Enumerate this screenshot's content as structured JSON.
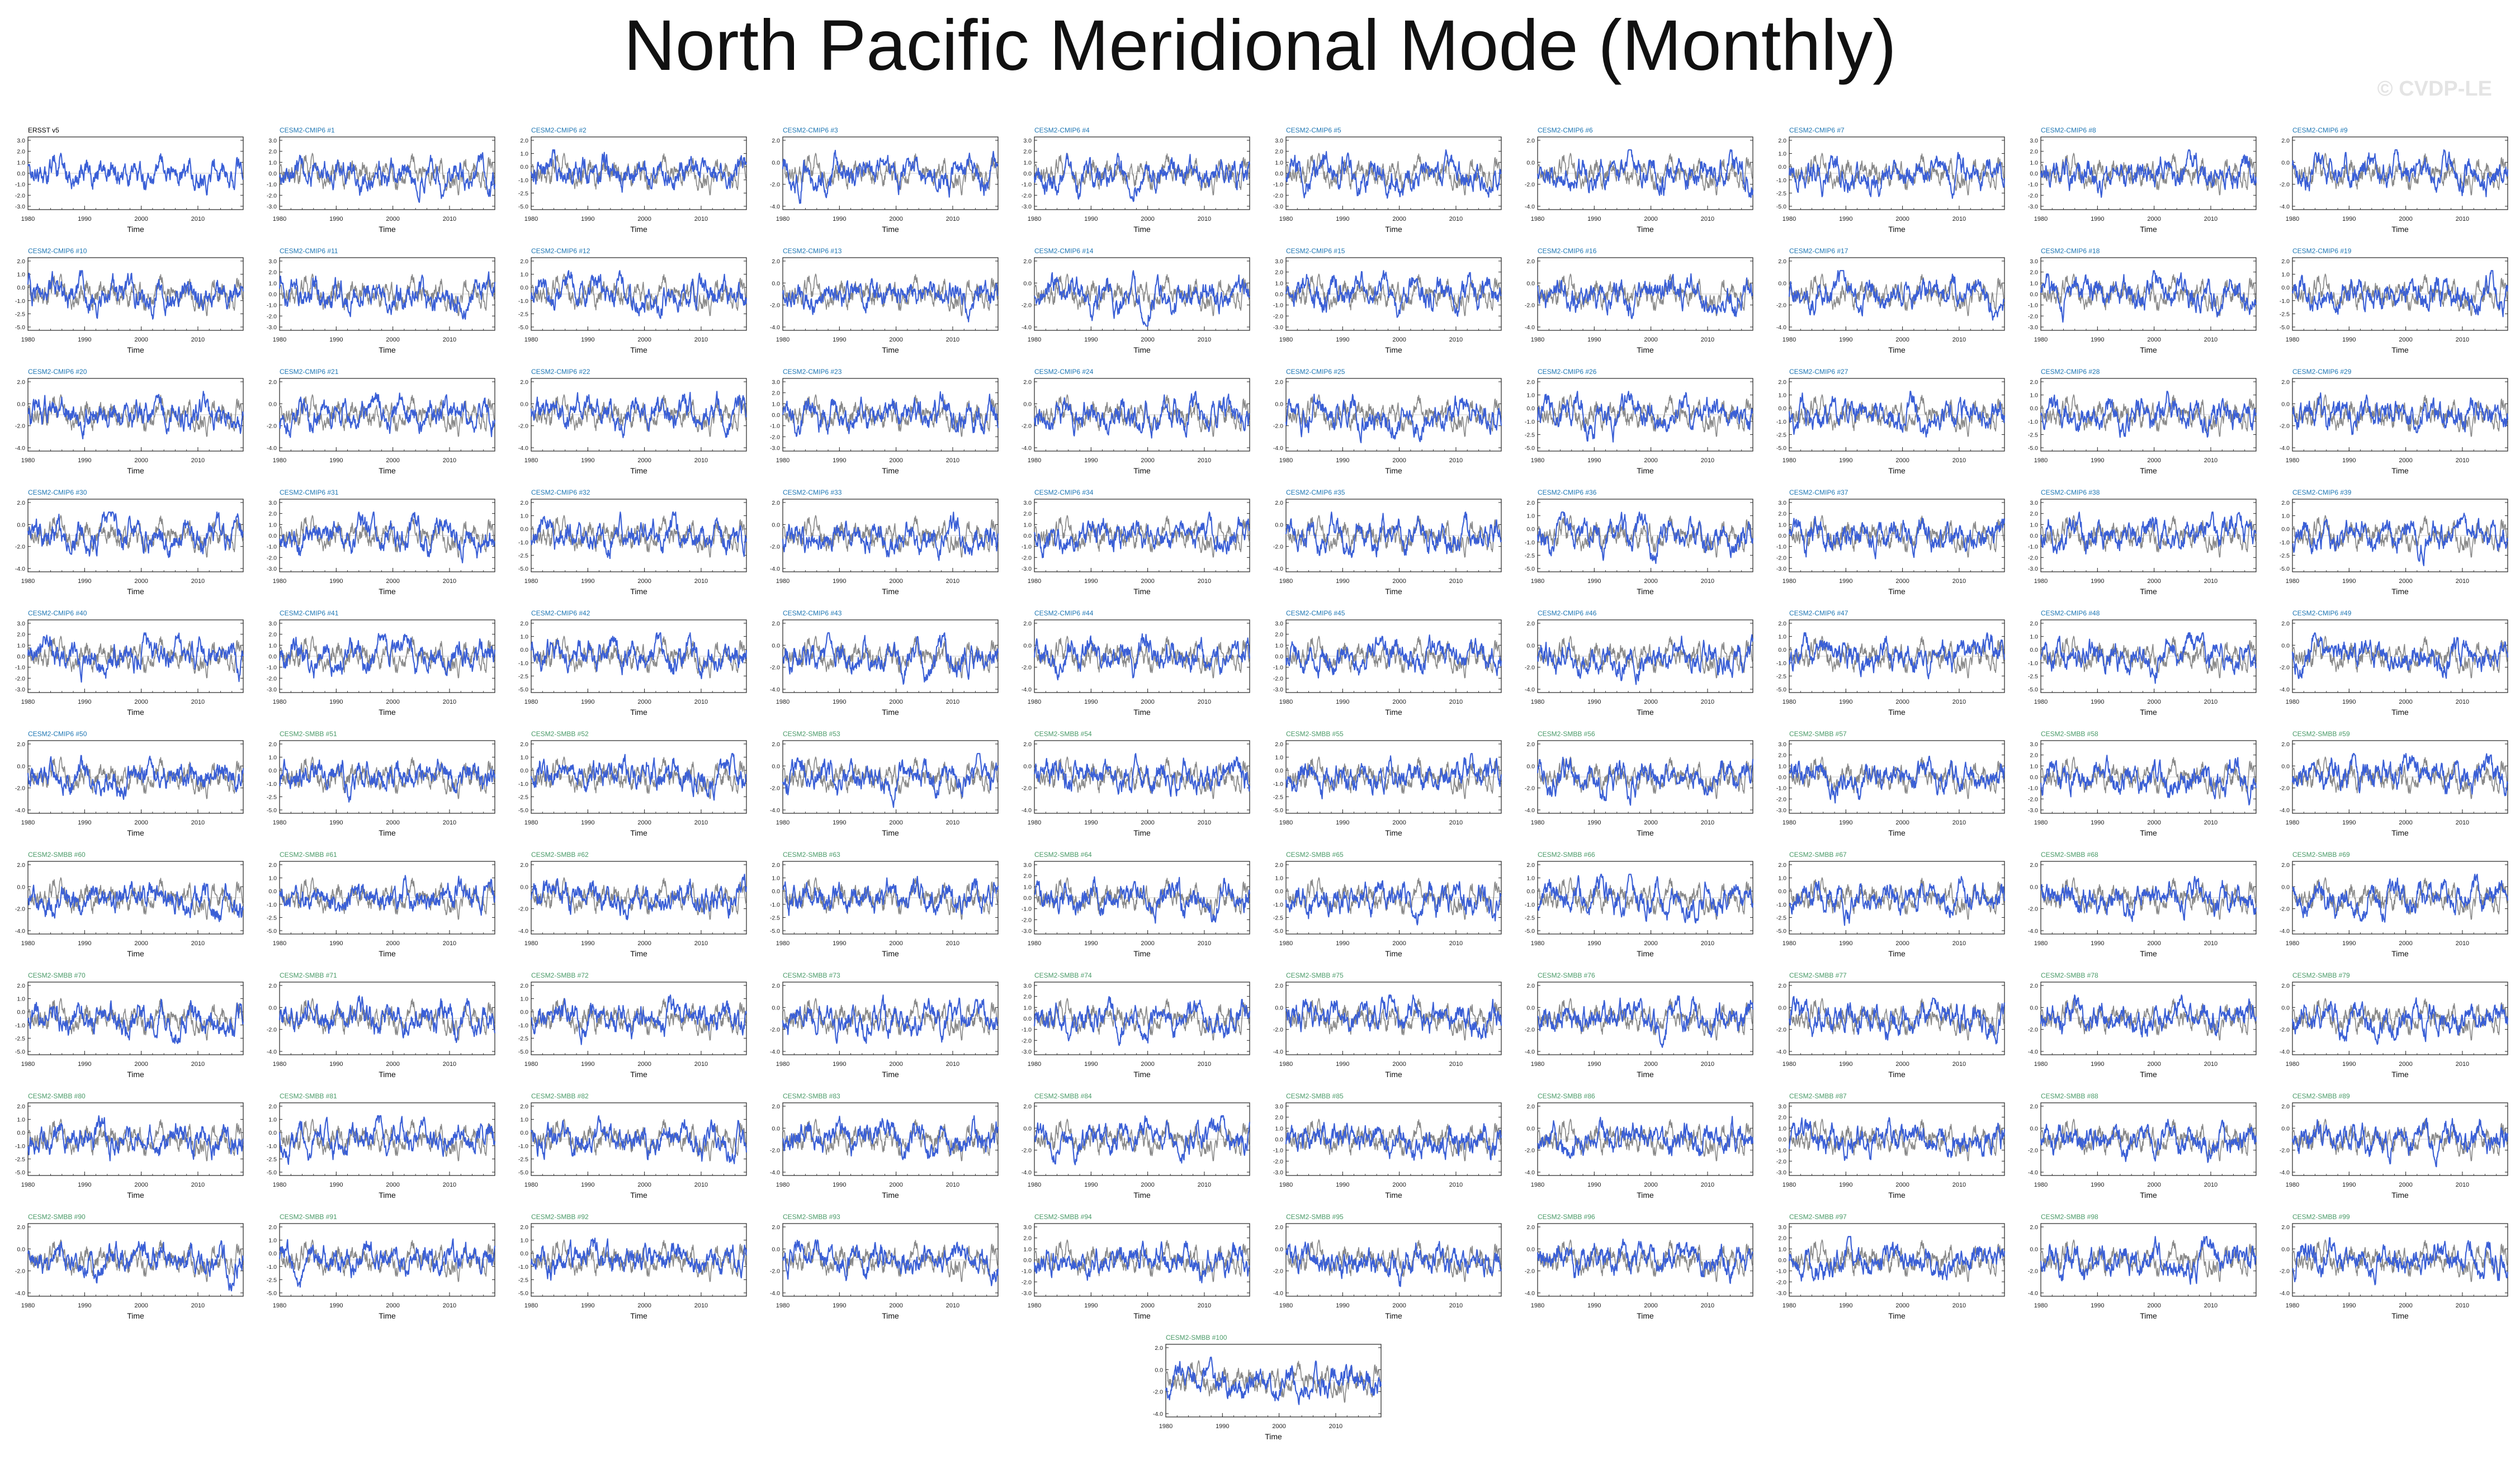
{
  "page": {
    "title": "North Pacific Meridional Mode (Monthly)",
    "watermark": "© CVDP-LE"
  },
  "colors": {
    "observed_series": "#3a5fd6",
    "reference_series": "#888888",
    "obs_label": "#000000",
    "cmip6_label": "#1f77b4",
    "smbb_label": "#4a9a68",
    "axis": "#222222"
  },
  "chart_data": {
    "type": "line",
    "layout": "small-multiples",
    "panel_count": 101,
    "xlabel": "Time",
    "x_ticks": [
      1980,
      1990,
      2000,
      2010
    ],
    "xlim": [
      1980,
      2018
    ],
    "ylim": [
      -4.0,
      3.0
    ],
    "y_ticks_full": [
      "3.0",
      "2.0",
      "1.0",
      "0.0",
      "-1.0",
      "-2.0",
      "-3.0"
    ],
    "y_ticks_sparse": [
      "2.0",
      "0.0",
      "-2.0",
      "-4.0"
    ],
    "y_ticks_half": [
      "2.0",
      "1.0",
      "0.0",
      "-1.0",
      "-2.5",
      "-5.0"
    ],
    "panels": [
      {
        "label": "ERSST v5",
        "group": "obs",
        "ticks": "full"
      },
      {
        "label": "CESM2-CMIP6 #1",
        "group": "cmip6",
        "ticks": "full"
      },
      {
        "label": "CESM2-CMIP6 #2",
        "group": "cmip6",
        "ticks": "half"
      },
      {
        "label": "CESM2-CMIP6 #3",
        "group": "cmip6",
        "ticks": "sparse"
      },
      {
        "label": "CESM2-CMIP6 #4",
        "group": "cmip6",
        "ticks": "full"
      },
      {
        "label": "CESM2-CMIP6 #5",
        "group": "cmip6",
        "ticks": "full"
      },
      {
        "label": "CESM2-CMIP6 #6",
        "group": "cmip6",
        "ticks": "sparse"
      },
      {
        "label": "CESM2-CMIP6 #7",
        "group": "cmip6",
        "ticks": "half"
      },
      {
        "label": "CESM2-CMIP6 #8",
        "group": "cmip6",
        "ticks": "full"
      },
      {
        "label": "CESM2-CMIP6 #9",
        "group": "cmip6",
        "ticks": "sparse"
      },
      {
        "label": "CESM2-CMIP6 #10",
        "group": "cmip6",
        "ticks": "half"
      },
      {
        "label": "CESM2-CMIP6 #11",
        "group": "cmip6",
        "ticks": "full"
      },
      {
        "label": "CESM2-CMIP6 #12",
        "group": "cmip6",
        "ticks": "half"
      },
      {
        "label": "CESM2-CMIP6 #13",
        "group": "cmip6",
        "ticks": "sparse"
      },
      {
        "label": "CESM2-CMIP6 #14",
        "group": "cmip6",
        "ticks": "sparse"
      },
      {
        "label": "CESM2-CMIP6 #15",
        "group": "cmip6",
        "ticks": "full"
      },
      {
        "label": "CESM2-CMIP6 #16",
        "group": "cmip6",
        "ticks": "sparse"
      },
      {
        "label": "CESM2-CMIP6 #17",
        "group": "cmip6",
        "ticks": "sparse"
      },
      {
        "label": "CESM2-CMIP6 #18",
        "group": "cmip6",
        "ticks": "full"
      },
      {
        "label": "CESM2-CMIP6 #19",
        "group": "cmip6",
        "ticks": "half"
      },
      {
        "label": "CESM2-CMIP6 #20",
        "group": "cmip6",
        "ticks": "sparse"
      },
      {
        "label": "CESM2-CMIP6 #21",
        "group": "cmip6",
        "ticks": "sparse"
      },
      {
        "label": "CESM2-CMIP6 #22",
        "group": "cmip6",
        "ticks": "sparse"
      },
      {
        "label": "CESM2-CMIP6 #23",
        "group": "cmip6",
        "ticks": "full"
      },
      {
        "label": "CESM2-CMIP6 #24",
        "group": "cmip6",
        "ticks": "sparse"
      },
      {
        "label": "CESM2-CMIP6 #25",
        "group": "cmip6",
        "ticks": "sparse"
      },
      {
        "label": "CESM2-CMIP6 #26",
        "group": "cmip6",
        "ticks": "half"
      },
      {
        "label": "CESM2-CMIP6 #27",
        "group": "cmip6",
        "ticks": "half"
      },
      {
        "label": "CESM2-CMIP6 #28",
        "group": "cmip6",
        "ticks": "half"
      },
      {
        "label": "CESM2-CMIP6 #29",
        "group": "cmip6",
        "ticks": "sparse"
      },
      {
        "label": "CESM2-CMIP6 #30",
        "group": "cmip6",
        "ticks": "sparse"
      },
      {
        "label": "CESM2-CMIP6 #31",
        "group": "cmip6",
        "ticks": "full"
      },
      {
        "label": "CESM2-CMIP6 #32",
        "group": "cmip6",
        "ticks": "half"
      },
      {
        "label": "CESM2-CMIP6 #33",
        "group": "cmip6",
        "ticks": "sparse"
      },
      {
        "label": "CESM2-CMIP6 #34",
        "group": "cmip6",
        "ticks": "full"
      },
      {
        "label": "CESM2-CMIP6 #35",
        "group": "cmip6",
        "ticks": "sparse"
      },
      {
        "label": "CESM2-CMIP6 #36",
        "group": "cmip6",
        "ticks": "half"
      },
      {
        "label": "CESM2-CMIP6 #37",
        "group": "cmip6",
        "ticks": "full"
      },
      {
        "label": "CESM2-CMIP6 #38",
        "group": "cmip6",
        "ticks": "full"
      },
      {
        "label": "CESM2-CMIP6 #39",
        "group": "cmip6",
        "ticks": "half"
      },
      {
        "label": "CESM2-CMIP6 #40",
        "group": "cmip6",
        "ticks": "full"
      },
      {
        "label": "CESM2-CMIP6 #41",
        "group": "cmip6",
        "ticks": "full"
      },
      {
        "label": "CESM2-CMIP6 #42",
        "group": "cmip6",
        "ticks": "half"
      },
      {
        "label": "CESM2-CMIP6 #43",
        "group": "cmip6",
        "ticks": "sparse"
      },
      {
        "label": "CESM2-CMIP6 #44",
        "group": "cmip6",
        "ticks": "sparse"
      },
      {
        "label": "CESM2-CMIP6 #45",
        "group": "cmip6",
        "ticks": "full"
      },
      {
        "label": "CESM2-CMIP6 #46",
        "group": "cmip6",
        "ticks": "sparse"
      },
      {
        "label": "CESM2-CMIP6 #47",
        "group": "cmip6",
        "ticks": "half"
      },
      {
        "label": "CESM2-CMIP6 #48",
        "group": "cmip6",
        "ticks": "half"
      },
      {
        "label": "CESM2-CMIP6 #49",
        "group": "cmip6",
        "ticks": "sparse"
      },
      {
        "label": "CESM2-CMIP6 #50",
        "group": "cmip6",
        "ticks": "sparse"
      },
      {
        "label": "CESM2-SMBB #51",
        "group": "smbb",
        "ticks": "half"
      },
      {
        "label": "CESM2-SMBB #52",
        "group": "smbb",
        "ticks": "half"
      },
      {
        "label": "CESM2-SMBB #53",
        "group": "smbb",
        "ticks": "sparse"
      },
      {
        "label": "CESM2-SMBB #54",
        "group": "smbb",
        "ticks": "sparse"
      },
      {
        "label": "CESM2-SMBB #55",
        "group": "smbb",
        "ticks": "half"
      },
      {
        "label": "CESM2-SMBB #56",
        "group": "smbb",
        "ticks": "sparse"
      },
      {
        "label": "CESM2-SMBB #57",
        "group": "smbb",
        "ticks": "full"
      },
      {
        "label": "CESM2-SMBB #58",
        "group": "smbb",
        "ticks": "full"
      },
      {
        "label": "CESM2-SMBB #59",
        "group": "smbb",
        "ticks": "sparse"
      },
      {
        "label": "CESM2-SMBB #60",
        "group": "smbb",
        "ticks": "sparse"
      },
      {
        "label": "CESM2-SMBB #61",
        "group": "smbb",
        "ticks": "half"
      },
      {
        "label": "CESM2-SMBB #62",
        "group": "smbb",
        "ticks": "sparse"
      },
      {
        "label": "CESM2-SMBB #63",
        "group": "smbb",
        "ticks": "half"
      },
      {
        "label": "CESM2-SMBB #64",
        "group": "smbb",
        "ticks": "full"
      },
      {
        "label": "CESM2-SMBB #65",
        "group": "smbb",
        "ticks": "half"
      },
      {
        "label": "CESM2-SMBB #66",
        "group": "smbb",
        "ticks": "half"
      },
      {
        "label": "CESM2-SMBB #67",
        "group": "smbb",
        "ticks": "half"
      },
      {
        "label": "CESM2-SMBB #68",
        "group": "smbb",
        "ticks": "sparse"
      },
      {
        "label": "CESM2-SMBB #69",
        "group": "smbb",
        "ticks": "sparse"
      },
      {
        "label": "CESM2-SMBB #70",
        "group": "smbb",
        "ticks": "half"
      },
      {
        "label": "CESM2-SMBB #71",
        "group": "smbb",
        "ticks": "sparse"
      },
      {
        "label": "CESM2-SMBB #72",
        "group": "smbb",
        "ticks": "half"
      },
      {
        "label": "CESM2-SMBB #73",
        "group": "smbb",
        "ticks": "sparse"
      },
      {
        "label": "CESM2-SMBB #74",
        "group": "smbb",
        "ticks": "full"
      },
      {
        "label": "CESM2-SMBB #75",
        "group": "smbb",
        "ticks": "sparse"
      },
      {
        "label": "CESM2-SMBB #76",
        "group": "smbb",
        "ticks": "sparse"
      },
      {
        "label": "CESM2-SMBB #77",
        "group": "smbb",
        "ticks": "sparse"
      },
      {
        "label": "CESM2-SMBB #78",
        "group": "smbb",
        "ticks": "sparse"
      },
      {
        "label": "CESM2-SMBB #79",
        "group": "smbb",
        "ticks": "sparse"
      },
      {
        "label": "CESM2-SMBB #80",
        "group": "smbb",
        "ticks": "half"
      },
      {
        "label": "CESM2-SMBB #81",
        "group": "smbb",
        "ticks": "half"
      },
      {
        "label": "CESM2-SMBB #82",
        "group": "smbb",
        "ticks": "half"
      },
      {
        "label": "CESM2-SMBB #83",
        "group": "smbb",
        "ticks": "sparse"
      },
      {
        "label": "CESM2-SMBB #84",
        "group": "smbb",
        "ticks": "sparse"
      },
      {
        "label": "CESM2-SMBB #85",
        "group": "smbb",
        "ticks": "full"
      },
      {
        "label": "CESM2-SMBB #86",
        "group": "smbb",
        "ticks": "sparse"
      },
      {
        "label": "CESM2-SMBB #87",
        "group": "smbb",
        "ticks": "full"
      },
      {
        "label": "CESM2-SMBB #88",
        "group": "smbb",
        "ticks": "sparse"
      },
      {
        "label": "CESM2-SMBB #89",
        "group": "smbb",
        "ticks": "sparse"
      },
      {
        "label": "CESM2-SMBB #90",
        "group": "smbb",
        "ticks": "sparse"
      },
      {
        "label": "CESM2-SMBB #91",
        "group": "smbb",
        "ticks": "half"
      },
      {
        "label": "CESM2-SMBB #92",
        "group": "smbb",
        "ticks": "half"
      },
      {
        "label": "CESM2-SMBB #93",
        "group": "smbb",
        "ticks": "sparse"
      },
      {
        "label": "CESM2-SMBB #94",
        "group": "smbb",
        "ticks": "full"
      },
      {
        "label": "CESM2-SMBB #95",
        "group": "smbb",
        "ticks": "sparse"
      },
      {
        "label": "CESM2-SMBB #96",
        "group": "smbb",
        "ticks": "sparse"
      },
      {
        "label": "CESM2-SMBB #97",
        "group": "smbb",
        "ticks": "full"
      },
      {
        "label": "CESM2-SMBB #98",
        "group": "smbb",
        "ticks": "sparse"
      },
      {
        "label": "CESM2-SMBB #99",
        "group": "smbb",
        "ticks": "sparse"
      },
      {
        "label": "CESM2-SMBB #100",
        "group": "smbb",
        "ticks": "sparse"
      }
    ]
  }
}
